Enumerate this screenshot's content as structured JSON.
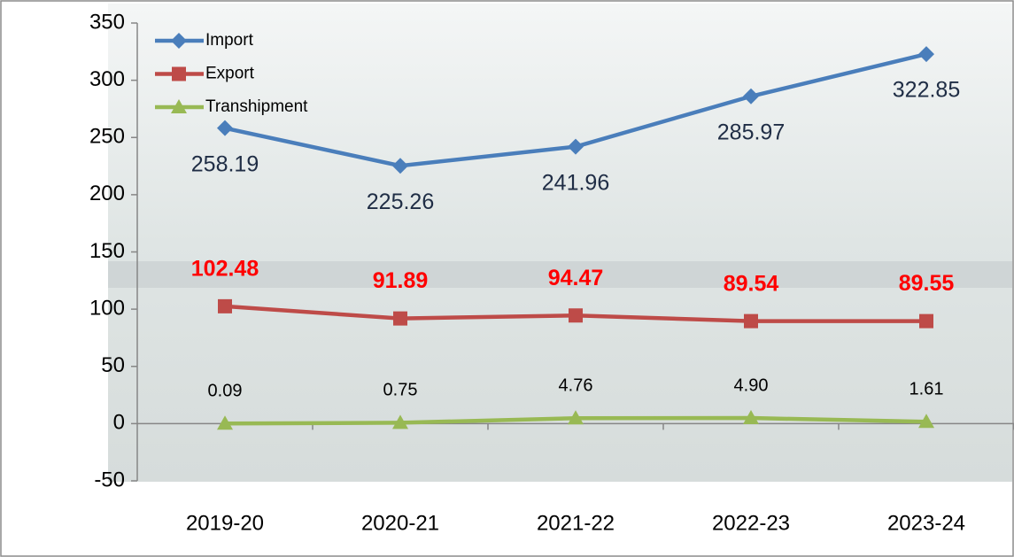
{
  "chart_data": {
    "type": "line",
    "categories": [
      "2019-20",
      "2020-21",
      "2021-22",
      "2022-23",
      "2023-24"
    ],
    "series": [
      {
        "name": "Import",
        "color": "#4a7ebb",
        "marker": "diamond",
        "values": [
          258.19,
          225.26,
          241.96,
          285.97,
          322.85
        ]
      },
      {
        "name": "Export",
        "color": "#be4b48",
        "marker": "square",
        "label_color": "#ff0000",
        "values": [
          102.48,
          91.89,
          94.47,
          89.54,
          89.55
        ]
      },
      {
        "name": "Transhipment",
        "color": "#98b954",
        "marker": "triangle",
        "values": [
          0.09,
          0.75,
          4.76,
          4.9,
          1.61
        ],
        "value_labels": [
          "0.09",
          "0.75",
          "4.76",
          "4.90",
          "1.61"
        ]
      }
    ],
    "ylim": [
      -50,
      350
    ],
    "yticks": [
      -50,
      0,
      50,
      100,
      150,
      200,
      250,
      300,
      350
    ]
  }
}
